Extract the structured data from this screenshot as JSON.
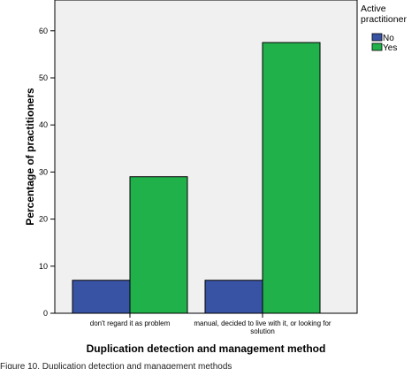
{
  "chart_data": {
    "type": "bar",
    "xlabel": "Duplication detection and management method",
    "ylabel": "Percentage of practitioners",
    "ylim": [
      0,
      70
    ],
    "yticks": [
      0,
      10,
      20,
      30,
      40,
      50,
      60
    ],
    "categories": [
      [
        "don't regard it as problem"
      ],
      [
        "manual, decided to live with it, or looking for",
        "solution"
      ]
    ],
    "legend": {
      "title": [
        "Active",
        "practitioner"
      ],
      "placement": "right"
    },
    "series": [
      {
        "name": "No",
        "color": "#3953a4",
        "values": [
          7,
          7
        ]
      },
      {
        "name": "Yes",
        "color": "#21b14b",
        "values": [
          29,
          57.5
        ]
      }
    ],
    "grid": false
  },
  "caption": "Figure 10. Duplication detection and management methods"
}
